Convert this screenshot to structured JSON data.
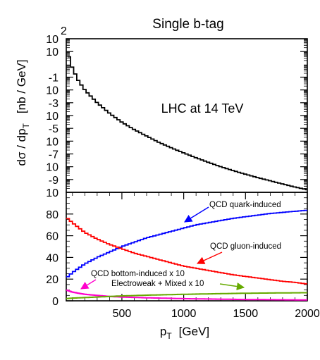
{
  "chart_data": [
    {
      "type": "line",
      "title": "Single b-tag",
      "ylabel_main": "dσ / dp",
      "ylabel_sub": "T",
      "ylabel_units": "[nb / GeV]",
      "y_scale": "log",
      "ylim": [
        1e-10,
        100
      ],
      "xlim": [
        50,
        2000
      ],
      "annotation": "LHC at 14 TeV",
      "y_tick_labels": [
        {
          "base": "10",
          "exp": "2",
          "value": 100
        },
        {
          "base": "10",
          "exp": "",
          "value": 10
        },
        {
          "base": "",
          "exp": "-1",
          "value": 0.1
        },
        {
          "base": "10",
          "exp": "",
          "value": 0.01
        },
        {
          "base": "",
          "exp": "-3",
          "value": 0.001
        },
        {
          "base": "10",
          "exp": "",
          "value": 0.0001
        },
        {
          "base": "",
          "exp": "-5",
          "value": 1e-05
        },
        {
          "base": "10",
          "exp": "",
          "value": 1e-06
        },
        {
          "base": "",
          "exp": "-7",
          "value": 1e-07
        },
        {
          "base": "10",
          "exp": "",
          "value": 1e-08
        },
        {
          "base": "",
          "exp": "-9",
          "value": 1e-09
        },
        {
          "base": "10",
          "exp": "",
          "value": 1e-10
        }
      ],
      "series": [
        {
          "color": "#000000",
          "x": [
            60,
            100,
            150,
            200,
            300,
            400,
            500,
            600,
            700,
            800,
            900,
            1000,
            1100,
            1200,
            1300,
            1400,
            1500,
            1600,
            1700,
            1800,
            1900,
            2000
          ],
          "y": [
            10,
            0.5,
            0.05,
            0.01,
            0.001,
            0.00015,
            3e-05,
            8e-06,
            2.5e-06,
            8e-07,
            3e-07,
            1.2e-07,
            5e-08,
            2.2e-08,
            1e-08,
            5e-09,
            2.6e-09,
            1.4e-09,
            8e-10,
            4.5e-10,
            2.6e-10,
            1.6e-10
          ]
        }
      ]
    },
    {
      "type": "line",
      "xlabel_main": "p",
      "xlabel_sub": "T",
      "xlabel_units": "[GeV]",
      "xlim": [
        50,
        2000
      ],
      "ylim": [
        0,
        100
      ],
      "x_ticks": [
        500,
        1000,
        1500,
        2000
      ],
      "y_ticks": [
        0,
        20,
        40,
        60,
        80
      ],
      "series": [
        {
          "name": "QCD quark-induced",
          "color": "#0000ff",
          "x": [
            50,
            100,
            200,
            300,
            400,
            500,
            600,
            700,
            800,
            900,
            1000,
            1100,
            1200,
            1300,
            1400,
            1500,
            1600,
            1700,
            1800,
            1900,
            2000
          ],
          "y": [
            21,
            26,
            34,
            40,
            45,
            50,
            54,
            58,
            61,
            64,
            67,
            70,
            72,
            74,
            76,
            77.5,
            79,
            80.5,
            81.5,
            82.5,
            83.5
          ]
        },
        {
          "name": "QCD gluon-induced",
          "color": "#ff0000",
          "x": [
            50,
            100,
            200,
            300,
            400,
            500,
            600,
            700,
            800,
            900,
            1000,
            1100,
            1200,
            1300,
            1400,
            1500,
            1600,
            1700,
            1800,
            1900,
            2000
          ],
          "y": [
            77,
            72,
            63,
            57,
            52,
            48,
            44,
            41,
            38,
            35,
            32,
            30,
            28,
            26,
            24,
            22.5,
            21,
            19.5,
            18,
            17,
            15.5
          ]
        },
        {
          "name": "QCD bottom-induced x 10",
          "color": "#ff00cc",
          "x": [
            50,
            100,
            200,
            300,
            400,
            500,
            700,
            1000,
            1500,
            2000
          ],
          "y": [
            10,
            8,
            6,
            5,
            4,
            3.5,
            2.8,
            2,
            1.2,
            0.8
          ]
        },
        {
          "name": "Electroweak + Mixed x 10",
          "color": "#66aa00",
          "x": [
            50,
            100,
            200,
            300,
            400,
            500,
            700,
            1000,
            1500,
            2000
          ],
          "y": [
            2,
            2.5,
            3,
            3.5,
            4,
            4.5,
            5.2,
            6,
            7,
            7.5
          ]
        }
      ]
    }
  ]
}
